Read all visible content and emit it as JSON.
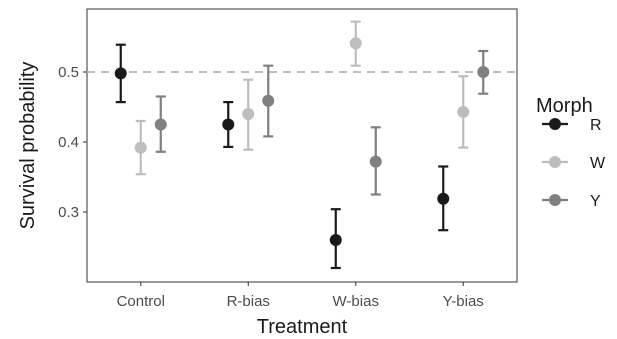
{
  "chart_data": {
    "type": "scatter",
    "xlabel": "Treatment",
    "ylabel": "Survival probability",
    "categories": [
      "Control",
      "R-bias",
      "W-bias",
      "Y-bias"
    ],
    "ylim": [
      0.2,
      0.59
    ],
    "yticks": [
      0.3,
      0.4,
      0.5
    ],
    "ytick_labels": [
      "0.3",
      "0.4",
      "0.5"
    ],
    "reference_line": {
      "y": 0.5,
      "style": "dashed",
      "color": "#bdbdbd"
    },
    "grid": false,
    "legend": {
      "title": "Morph",
      "position": "right",
      "entries": [
        "R",
        "W",
        "Y"
      ]
    },
    "series": [
      {
        "name": "R",
        "color": "#1a1a1a",
        "values": [
          0.498,
          0.425,
          0.26,
          0.319
        ],
        "lower": [
          0.457,
          0.393,
          0.22,
          0.274
        ],
        "upper": [
          0.539,
          0.457,
          0.304,
          0.365
        ]
      },
      {
        "name": "W",
        "color": "#bdbdbd",
        "values": [
          0.392,
          0.44,
          0.541,
          0.443
        ],
        "lower": [
          0.354,
          0.389,
          0.509,
          0.392
        ],
        "upper": [
          0.43,
          0.489,
          0.572,
          0.494
        ]
      },
      {
        "name": "Y",
        "color": "#808080",
        "values": [
          0.425,
          0.459,
          0.372,
          0.5
        ],
        "lower": [
          0.386,
          0.408,
          0.325,
          0.469
        ],
        "upper": [
          0.465,
          0.509,
          0.421,
          0.53
        ]
      }
    ]
  }
}
